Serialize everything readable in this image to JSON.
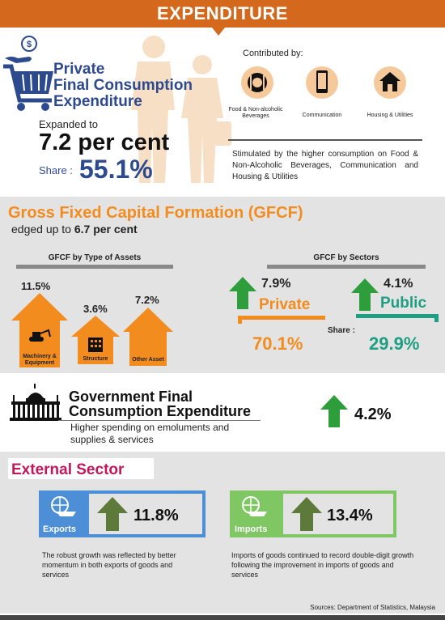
{
  "header": {
    "title": "EXPENDITURE"
  },
  "pfce": {
    "title_lines": [
      "Private",
      "Final Consumption",
      "Expenditure"
    ],
    "expanded_label": "Expanded to",
    "value": "7.2 per cent",
    "share_label": "Share :",
    "share_value": "55.1%",
    "contributed_label": "Contributed by:",
    "contributors": [
      {
        "icon": "food-icon",
        "label": "Food & Non-alcoholic Beverages"
      },
      {
        "icon": "phone-icon",
        "label": "Communication"
      },
      {
        "icon": "house-icon",
        "label": "Housing & Utilities"
      }
    ],
    "stimulus_text": "Stimulated by the higher consumption on Food & Non-Alcoholic Beverages, Communication and Housing & Utilities"
  },
  "gfcf": {
    "title": "Gross Fixed Capital Formation (GFCF)",
    "subtitle_prefix": "edged up to ",
    "subtitle_value": "6.7 per cent",
    "by_assets": {
      "heading": "GFCF by Type of Assets",
      "items": [
        {
          "label": "Machinery & Equipment",
          "pct": "11.5%",
          "icon": "excavator-icon"
        },
        {
          "label": "Structure",
          "pct": "3.6%",
          "icon": "building-icon"
        },
        {
          "label": "Other Asset",
          "pct": "7.2%",
          "icon": ""
        }
      ]
    },
    "by_sectors": {
      "heading": "GFCF by Sectors",
      "share_label": "Share :",
      "private": {
        "name": "Private",
        "growth": "7.9%",
        "share": "70.1%",
        "color": "#f28c1f"
      },
      "public": {
        "name": "Public",
        "growth": "4.1%",
        "share": "29.9%",
        "color": "#1e9e82"
      }
    }
  },
  "gov": {
    "title_lines": [
      "Government Final",
      "Consumption Expenditure"
    ],
    "subtitle_lines": [
      "Higher spending on emoluments and",
      "supplies & services"
    ],
    "growth": "4.2%"
  },
  "external": {
    "title": "External Sector",
    "exports": {
      "label": "Exports",
      "growth": "11.8%",
      "color": "#4d8fd6",
      "desc": "The robust growth was reflected by better momentum in both exports of goods and services"
    },
    "imports": {
      "label": "Imports",
      "growth": "13.4%",
      "color": "#7fc762",
      "desc": "Imports of goods continued to record double-digit growth following the improvement in imports of goods and services"
    }
  },
  "source": "Sources: Department of Statistics, Malaysia",
  "colors": {
    "header": "#d4691e",
    "navy": "#2e4a8f",
    "orange": "#f28c1f",
    "green": "#2e9e3c",
    "magenta": "#c2185b"
  }
}
